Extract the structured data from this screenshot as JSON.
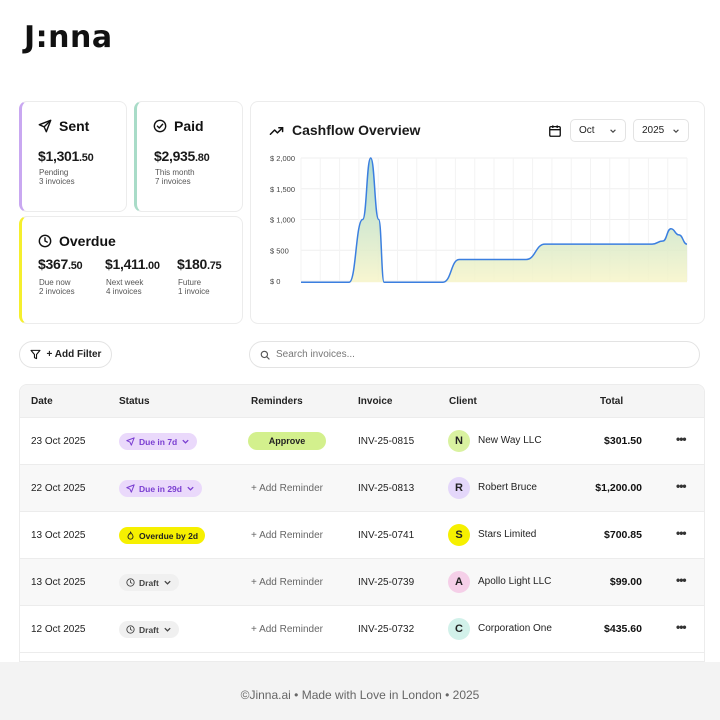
{
  "brand": {
    "logo_text": "J:nna"
  },
  "stats": {
    "sent": {
      "label": "Sent",
      "currency": "$",
      "whole": "1,301",
      "cents": ".50",
      "sub1": "Pending",
      "sub2": "3 invoices"
    },
    "paid": {
      "label": "Paid",
      "currency": "$",
      "whole": "2,935",
      "cents": ".80",
      "sub1": "This month",
      "sub2": "7 invoices"
    },
    "overdue": {
      "label": "Overdue",
      "items": [
        {
          "currency": "$",
          "whole": "367",
          "cents": ".50",
          "sub1": "Due now",
          "sub2": "2 invoices"
        },
        {
          "currency": "$",
          "whole": "1,411",
          "cents": ".00",
          "sub1": "Next week",
          "sub2": "4 invoices"
        },
        {
          "currency": "$",
          "whole": "180",
          "cents": ".75",
          "sub1": "Future",
          "sub2": "1 invoice"
        }
      ]
    }
  },
  "cashflow": {
    "title": "Cashflow Overview",
    "month": "Oct",
    "year": "2025"
  },
  "chart_data": {
    "type": "area",
    "title": "Cashflow Overview",
    "ylim": [
      0,
      2000
    ],
    "y_ticks": [
      "$ 2,000",
      "$ 1,500",
      "$ 1,000",
      "$ 500",
      "$ 0"
    ],
    "grid": true,
    "series": [
      {
        "values": [
          [
            0,
            -20
          ],
          [
            1.8,
            -20
          ],
          [
            2.3,
            1000
          ],
          [
            2.6,
            2000
          ],
          [
            2.9,
            1000
          ],
          [
            3.1,
            -20
          ],
          [
            5.3,
            -20
          ],
          [
            5.9,
            350
          ],
          [
            8.4,
            350
          ],
          [
            9.1,
            600
          ],
          [
            13.1,
            600
          ],
          [
            13.5,
            650
          ],
          [
            13.8,
            850
          ],
          [
            14.1,
            750
          ],
          [
            14.4,
            600
          ]
        ]
      }
    ]
  },
  "toolbar": {
    "filter_label": "+ Add Filter",
    "search_placeholder": "Search invoices..."
  },
  "table": {
    "columns": [
      "Date",
      "Status",
      "Reminders",
      "Invoice",
      "Client",
      "Total"
    ],
    "rows": [
      {
        "date": "23 Oct 2025",
        "status": "Due in 7d",
        "status_type": "due",
        "reminder": "Approve",
        "invoice": "INV-25-0815",
        "initial": "N",
        "avatar_color": "#d9f2a0",
        "client": "New Way LLC",
        "total": "$301.50",
        "more": "•••"
      },
      {
        "date": "22 Oct 2025",
        "status": "Due in 29d",
        "status_type": "due",
        "reminder": "+ Add Reminder",
        "invoice": "INV-25-0813",
        "initial": "R",
        "avatar_color": "#e4d7fa",
        "client": "Robert Bruce",
        "total": "$1,200.00",
        "more": "•••"
      },
      {
        "date": "13 Oct 2025",
        "status": "Overdue by 2d",
        "status_type": "overdue",
        "reminder": "+ Add Reminder",
        "invoice": "INV-25-0741",
        "initial": "S",
        "avatar_color": "#f6f000",
        "client": "Stars Limited",
        "total": "$700.85",
        "more": "•••"
      },
      {
        "date": "13 Oct 2025",
        "status": "Draft",
        "status_type": "draft",
        "reminder": "+ Add Reminder",
        "invoice": "INV-25-0739",
        "initial": "A",
        "avatar_color": "#f5cfe8",
        "client": "Apollo Light LLC",
        "total": "$99.00",
        "more": "•••"
      },
      {
        "date": "12 Oct 2025",
        "status": "Draft",
        "status_type": "draft",
        "reminder": "+ Add Reminder",
        "invoice": "INV-25-0732",
        "initial": "C",
        "avatar_color": "#d2f1ea",
        "client": "Corporation One",
        "total": "$435.60",
        "more": "•••"
      }
    ]
  },
  "footer": {
    "text": "©Jinna.ai • Made with Love in London • 2025"
  }
}
